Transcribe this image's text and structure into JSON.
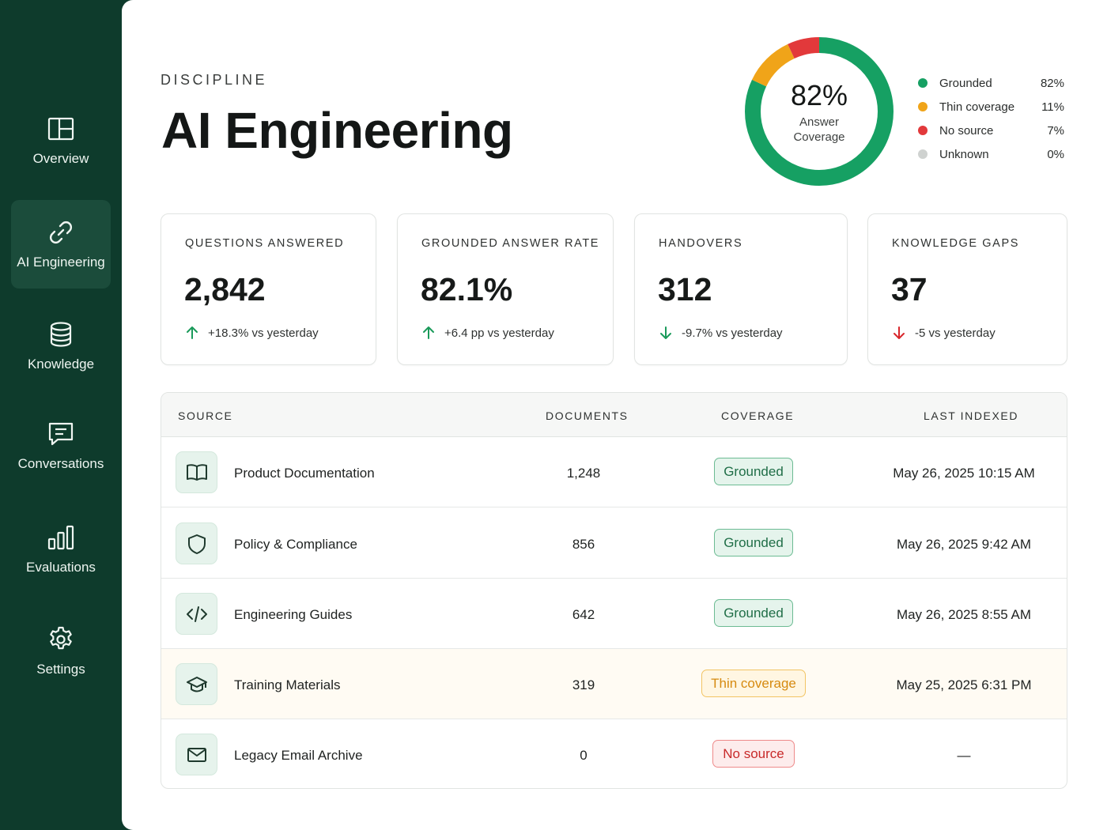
{
  "sidebar": {
    "items": [
      {
        "label": "Overview",
        "icon": "layout-icon",
        "active": false
      },
      {
        "label": "AI Engineering",
        "icon": "link-icon",
        "active": true
      },
      {
        "label": "Knowledge",
        "icon": "database-icon",
        "active": false
      },
      {
        "label": "Conversations",
        "icon": "chat-icon",
        "active": false
      },
      {
        "label": "Evaluations",
        "icon": "bar-chart-icon",
        "active": false
      },
      {
        "label": "Settings",
        "icon": "gear-icon",
        "active": false
      }
    ]
  },
  "header": {
    "eyebrow": "DISCIPLINE",
    "title": "AI Engineering"
  },
  "coverage": {
    "percent": "82%",
    "label": "Answer Coverage",
    "legend": [
      {
        "label": "Grounded",
        "value": "82%",
        "color": "#16a063"
      },
      {
        "label": "Thin coverage",
        "value": "11%",
        "color": "#f0a419"
      },
      {
        "label": "No source",
        "value": "7%",
        "color": "#e2393b"
      },
      {
        "label": "Unknown",
        "value": "0%",
        "color": "#cfd2d0"
      }
    ]
  },
  "stats": [
    {
      "label": "QUESTIONS ANSWERED",
      "value": "2,842",
      "delta": "+18.3% vs yesterday",
      "direction": "up",
      "color": "#1a9a5a"
    },
    {
      "label": "GROUNDED ANSWER RATE",
      "value": "82.1%",
      "delta": "+6.4 pp vs yesterday",
      "direction": "up",
      "color": "#1a9a5a"
    },
    {
      "label": "HANDOVERS",
      "value": "312",
      "delta": "-9.7% vs yesterday",
      "direction": "down",
      "color": "#1a9a5a"
    },
    {
      "label": "KNOWLEDGE GAPS",
      "value": "37",
      "delta": "-5 vs yesterday",
      "direction": "down",
      "color": "#d8262b"
    }
  ],
  "table": {
    "columns": [
      "SOURCE",
      "DOCUMENTS",
      "COVERAGE",
      "LAST INDEXED"
    ],
    "rows": [
      {
        "name": "Product Documentation",
        "icon": "book-icon",
        "documents": "1,248",
        "coverage": "Grounded",
        "status": "green",
        "indexed": "May 26, 2025 10:15 AM"
      },
      {
        "name": "Policy & Compliance",
        "icon": "shield-icon",
        "documents": "856",
        "coverage": "Grounded",
        "status": "green",
        "indexed": "May 26, 2025 9:42 AM"
      },
      {
        "name": "Engineering Guides",
        "icon": "code-icon",
        "documents": "642",
        "coverage": "Grounded",
        "status": "green",
        "indexed": "May 26, 2025 8:55 AM"
      },
      {
        "name": "Training Materials",
        "icon": "graduation-cap-icon",
        "documents": "319",
        "coverage": "Thin coverage",
        "status": "amber",
        "indexed": "May 25, 2025 6:31 PM"
      },
      {
        "name": "Legacy Email Archive",
        "icon": "mail-icon",
        "documents": "0",
        "coverage": "No source",
        "status": "red",
        "indexed": "—"
      }
    ]
  }
}
